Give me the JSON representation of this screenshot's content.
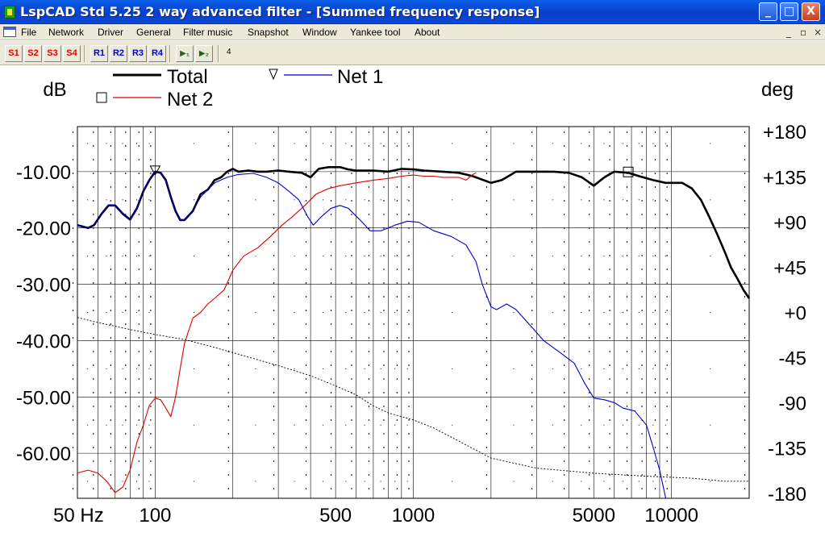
{
  "window": {
    "title": "LspCAD Std 5.25 2 way advanced filter - [Summed frequency response]",
    "minimize_glyph": "_",
    "maximize_glyph": "□",
    "close_glyph": "X",
    "app_icon": "lspcad-app-icon"
  },
  "menu": {
    "items": [
      "File",
      "Network",
      "Driver",
      "General",
      "Filter music",
      "Snapshot",
      "Window",
      "Yankee tool",
      "About"
    ],
    "mdi_controls": [
      "_",
      "▫",
      "×"
    ]
  },
  "toolbar": {
    "snapshot_buttons": [
      "S1",
      "S2",
      "S3",
      "S4"
    ],
    "recall_buttons": [
      "R1",
      "R2",
      "R3",
      "R4"
    ],
    "tool_buttons": [
      "▶₁",
      "▶₂"
    ],
    "field_value": "4"
  },
  "chart_data": {
    "type": "line",
    "left_axis_label": "dB",
    "right_axis_label": "deg",
    "x_scale": "log",
    "x_range": [
      50,
      20000
    ],
    "left_ylim": [
      -68,
      -2
    ],
    "right_ylim": [
      -185,
      185
    ],
    "left_ticks": [
      -10,
      -20,
      -30,
      -40,
      -50,
      -60
    ],
    "left_tick_labels": [
      "-10.00",
      "-20.00",
      "-30.00",
      "-40.00",
      "-50.00",
      "-60.00"
    ],
    "right_ticks": [
      180,
      135,
      90,
      45,
      0,
      -45,
      -90,
      -135,
      -180
    ],
    "right_tick_labels": [
      "+180",
      "+135",
      "+90",
      "+45",
      "+0",
      "-45",
      "-90",
      "-135",
      "-180"
    ],
    "x_ticks": [
      50,
      100,
      500,
      1000,
      5000,
      10000
    ],
    "x_tick_labels": [
      "50 Hz",
      "100",
      "500",
      "1000",
      "5000",
      "10000"
    ],
    "legend": [
      {
        "name": "Total",
        "color": "#000000",
        "marker": "none"
      },
      {
        "name": "Net 1",
        "color": "#0000cc",
        "marker": "triangle"
      },
      {
        "name": "Net 2",
        "color": "#dd0000",
        "marker": "square"
      }
    ],
    "series": [
      {
        "name": "Total",
        "color": "#000000",
        "axis": "left",
        "points": [
          [
            50,
            -19.5
          ],
          [
            55,
            -20
          ],
          [
            58,
            -19.5
          ],
          [
            62,
            -17.5
          ],
          [
            66,
            -16
          ],
          [
            70,
            -16
          ],
          [
            75,
            -17.5
          ],
          [
            80,
            -18.5
          ],
          [
            85,
            -16.5
          ],
          [
            90,
            -13.5
          ],
          [
            95,
            -11.5
          ],
          [
            100,
            -10
          ],
          [
            105,
            -10.2
          ],
          [
            110,
            -11.5
          ],
          [
            115,
            -14.5
          ],
          [
            120,
            -17
          ],
          [
            125,
            -18.6
          ],
          [
            130,
            -18.6
          ],
          [
            140,
            -17
          ],
          [
            150,
            -14
          ],
          [
            160,
            -13.2
          ],
          [
            170,
            -11.5
          ],
          [
            180,
            -11
          ],
          [
            190,
            -10
          ],
          [
            200,
            -9.5
          ],
          [
            210,
            -10
          ],
          [
            230,
            -9.8
          ],
          [
            250,
            -10
          ],
          [
            270,
            -10
          ],
          [
            300,
            -9.8
          ],
          [
            330,
            -10
          ],
          [
            370,
            -10.2
          ],
          [
            400,
            -11
          ],
          [
            430,
            -9.5
          ],
          [
            470,
            -9.2
          ],
          [
            520,
            -9.2
          ],
          [
            560,
            -9.6
          ],
          [
            600,
            -9.8
          ],
          [
            700,
            -9.8
          ],
          [
            800,
            -10
          ],
          [
            900,
            -9.5
          ],
          [
            1000,
            -9.6
          ],
          [
            1100,
            -9.8
          ],
          [
            1300,
            -10
          ],
          [
            1500,
            -10.2
          ],
          [
            1700,
            -10.8
          ],
          [
            2000,
            -12
          ],
          [
            2200,
            -11.5
          ],
          [
            2500,
            -10
          ],
          [
            3000,
            -10
          ],
          [
            3500,
            -10
          ],
          [
            4000,
            -10.2
          ],
          [
            4500,
            -11
          ],
          [
            5000,
            -12.5
          ],
          [
            5500,
            -11
          ],
          [
            6000,
            -10
          ],
          [
            6800,
            -10.2
          ],
          [
            7500,
            -10.8
          ],
          [
            8500,
            -11.5
          ],
          [
            9500,
            -12
          ],
          [
            10000,
            -12
          ],
          [
            11000,
            -12
          ],
          [
            12000,
            -13
          ],
          [
            13000,
            -15
          ],
          [
            14000,
            -18
          ],
          [
            15000,
            -21
          ],
          [
            16000,
            -24
          ],
          [
            17000,
            -27
          ],
          [
            18000,
            -29
          ],
          [
            19000,
            -31
          ],
          [
            20000,
            -32.5
          ]
        ]
      },
      {
        "name": "Net 1",
        "color": "#0000cc",
        "axis": "left",
        "points": [
          [
            50,
            -19.5
          ],
          [
            55,
            -20
          ],
          [
            58,
            -19.5
          ],
          [
            62,
            -17.5
          ],
          [
            66,
            -16
          ],
          [
            70,
            -16
          ],
          [
            75,
            -17.5
          ],
          [
            80,
            -18.5
          ],
          [
            85,
            -16.5
          ],
          [
            90,
            -13.5
          ],
          [
            95,
            -11.5
          ],
          [
            100,
            -10
          ],
          [
            105,
            -10.2
          ],
          [
            110,
            -11.5
          ],
          [
            115,
            -14.5
          ],
          [
            120,
            -17
          ],
          [
            125,
            -18.6
          ],
          [
            130,
            -18.6
          ],
          [
            140,
            -17
          ],
          [
            150,
            -14.5
          ],
          [
            170,
            -12
          ],
          [
            190,
            -11
          ],
          [
            210,
            -10.5
          ],
          [
            240,
            -10.3
          ],
          [
            270,
            -11
          ],
          [
            300,
            -12
          ],
          [
            330,
            -13.5
          ],
          [
            360,
            -15
          ],
          [
            390,
            -18
          ],
          [
            410,
            -19.5
          ],
          [
            440,
            -18
          ],
          [
            480,
            -16.5
          ],
          [
            520,
            -16
          ],
          [
            560,
            -16.5
          ],
          [
            620,
            -18.5
          ],
          [
            680,
            -20.5
          ],
          [
            750,
            -20.5
          ],
          [
            850,
            -19.5
          ],
          [
            950,
            -18.8
          ],
          [
            1050,
            -19
          ],
          [
            1200,
            -20.5
          ],
          [
            1400,
            -21.5
          ],
          [
            1600,
            -23
          ],
          [
            1750,
            -26
          ],
          [
            1850,
            -30
          ],
          [
            2000,
            -34
          ],
          [
            2100,
            -34.5
          ],
          [
            2300,
            -33.5
          ],
          [
            2500,
            -34.5
          ],
          [
            2800,
            -37
          ],
          [
            3200,
            -40
          ],
          [
            3800,
            -42.5
          ],
          [
            4200,
            -44
          ],
          [
            4600,
            -47.5
          ],
          [
            5000,
            -50.2
          ],
          [
            5500,
            -50.5
          ],
          [
            6000,
            -51
          ],
          [
            6500,
            -52
          ],
          [
            7200,
            -52.5
          ],
          [
            8000,
            -55
          ],
          [
            8500,
            -59
          ],
          [
            9000,
            -63
          ],
          [
            9500,
            -68
          ]
        ]
      },
      {
        "name": "Net 2",
        "color": "#dd0000",
        "axis": "left",
        "points": [
          [
            50,
            -63.5
          ],
          [
            55,
            -63
          ],
          [
            60,
            -63.5
          ],
          [
            65,
            -65
          ],
          [
            70,
            -67
          ],
          [
            75,
            -66
          ],
          [
            80,
            -63
          ],
          [
            85,
            -58
          ],
          [
            90,
            -55
          ],
          [
            95,
            -51.5
          ],
          [
            100,
            -50.2
          ],
          [
            105,
            -50.5
          ],
          [
            110,
            -52
          ],
          [
            115,
            -53.5
          ],
          [
            120,
            -50
          ],
          [
            125,
            -45
          ],
          [
            130,
            -40.5
          ],
          [
            140,
            -36
          ],
          [
            150,
            -35
          ],
          [
            160,
            -33.5
          ],
          [
            170,
            -32.5
          ],
          [
            185,
            -31
          ],
          [
            200,
            -27.5
          ],
          [
            220,
            -25
          ],
          [
            250,
            -23.5
          ],
          [
            280,
            -21.5
          ],
          [
            310,
            -19.5
          ],
          [
            340,
            -18
          ],
          [
            380,
            -16
          ],
          [
            420,
            -14
          ],
          [
            470,
            -13
          ],
          [
            520,
            -12.5
          ],
          [
            600,
            -12
          ],
          [
            700,
            -11.5
          ],
          [
            800,
            -11.2
          ],
          [
            900,
            -10.8
          ],
          [
            1000,
            -10.6
          ],
          [
            1100,
            -10.8
          ],
          [
            1200,
            -10.8
          ],
          [
            1300,
            -11
          ],
          [
            1500,
            -11
          ],
          [
            1600,
            -11.5
          ],
          [
            1700,
            -10.5
          ],
          [
            1750,
            -10.2
          ]
        ]
      },
      {
        "name": "Phase",
        "color": "#000000",
        "axis": "right",
        "style": "dotted",
        "points": [
          [
            50,
            -5
          ],
          [
            60,
            -10
          ],
          [
            80,
            -17
          ],
          [
            100,
            -22
          ],
          [
            130,
            -27
          ],
          [
            160,
            -33
          ],
          [
            200,
            -40
          ],
          [
            300,
            -53
          ],
          [
            400,
            -63
          ],
          [
            500,
            -73
          ],
          [
            600,
            -82
          ],
          [
            700,
            -93
          ],
          [
            800,
            -100
          ],
          [
            1000,
            -107
          ],
          [
            1200,
            -115
          ],
          [
            1500,
            -128
          ],
          [
            2000,
            -145
          ],
          [
            3000,
            -155
          ],
          [
            5000,
            -160
          ],
          [
            8000,
            -163
          ],
          [
            12000,
            -165
          ],
          [
            16000,
            -168
          ],
          [
            20000,
            -168
          ]
        ]
      }
    ]
  }
}
